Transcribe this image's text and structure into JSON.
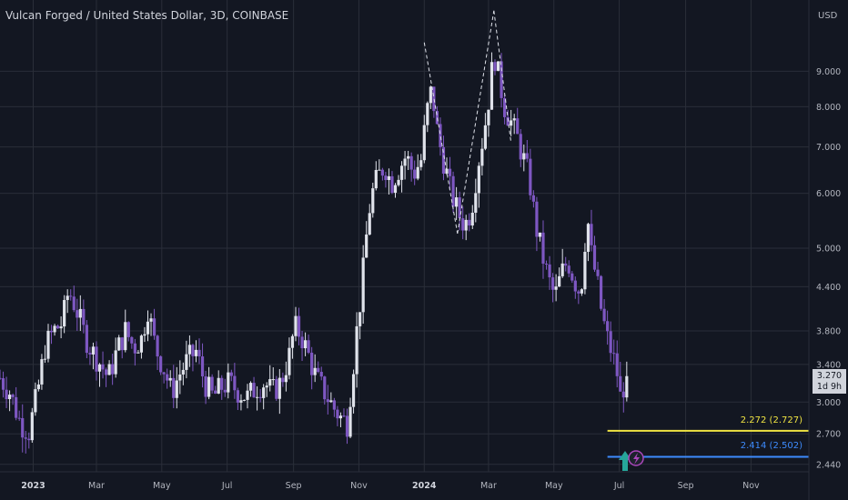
{
  "header": {
    "title": "Vulcan Forged / United States Dollar, 3D, COINBASE",
    "currency": "USD"
  },
  "price_tag": {
    "price": "3.270",
    "countdown": "1d 9h"
  },
  "levels": [
    {
      "label": "2.272 (2.727)",
      "value": 2.727,
      "color": "#f0e442"
    },
    {
      "label": "2.414 (2.502)",
      "value": 2.502,
      "color": "#3d8bfd"
    }
  ],
  "colors": {
    "background": "#131722",
    "grid": "#2a2e39",
    "bull": "#e0e3eb",
    "bear": "#7e57c2"
  },
  "chart_data": {
    "type": "candlestick",
    "title": "Vulcan Forged / United States Dollar, 3D, COINBASE",
    "scale": "log",
    "ylim": [
      2.38,
      11.4
    ],
    "y_ticks": [
      "9.000",
      "8.000",
      "7.000",
      "6.000",
      "5.000",
      "4.400",
      "3.800",
      "3.400",
      "3.000",
      "2.700",
      "2.440"
    ],
    "y_tick_values": [
      9.0,
      8.0,
      7.0,
      6.0,
      5.0,
      4.4,
      3.8,
      3.4,
      3.0,
      2.7,
      2.44
    ],
    "x_ticks": [
      {
        "label": "2023",
        "date": "2023-01-01",
        "bold": true
      },
      {
        "label": "Mar",
        "date": "2023-03-01",
        "bold": false
      },
      {
        "label": "May",
        "date": "2023-05-01",
        "bold": false
      },
      {
        "label": "Jul",
        "date": "2023-07-01",
        "bold": false
      },
      {
        "label": "Sep",
        "date": "2023-09-01",
        "bold": false
      },
      {
        "label": "Nov",
        "date": "2023-11-01",
        "bold": false
      },
      {
        "label": "2024",
        "date": "2024-01-01",
        "bold": true
      },
      {
        "label": "Mar",
        "date": "2024-03-01",
        "bold": false
      },
      {
        "label": "May",
        "date": "2024-05-01",
        "bold": false
      },
      {
        "label": "Jul",
        "date": "2024-07-01",
        "bold": false
      },
      {
        "label": "Sep",
        "date": "2024-09-01",
        "bold": false
      },
      {
        "label": "Nov",
        "date": "2024-11-01",
        "bold": false
      }
    ],
    "x_range": [
      "2022-12-01",
      "2024-12-25"
    ],
    "close_path": [
      [
        "2022-12-01",
        3.25
      ],
      [
        "2022-12-10",
        3.1
      ],
      [
        "2022-12-20",
        2.8
      ],
      [
        "2022-12-28",
        2.72
      ],
      [
        "2023-01-05",
        3.1
      ],
      [
        "2023-01-12",
        3.6
      ],
      [
        "2023-01-20",
        3.8
      ],
      [
        "2023-01-28",
        3.9
      ],
      [
        "2023-02-03",
        4.35
      ],
      [
        "2023-02-10",
        4.1
      ],
      [
        "2023-02-18",
        3.75
      ],
      [
        "2023-02-25",
        3.55
      ],
      [
        "2023-03-05",
        3.4
      ],
      [
        "2023-03-12",
        3.25
      ],
      [
        "2023-03-20",
        3.55
      ],
      [
        "2023-03-28",
        3.8
      ],
      [
        "2023-04-05",
        3.6
      ],
      [
        "2023-04-12",
        3.7
      ],
      [
        "2023-04-18",
        4.1
      ],
      [
        "2023-04-25",
        3.6
      ],
      [
        "2023-05-03",
        3.35
      ],
      [
        "2023-05-10",
        3.1
      ],
      [
        "2023-05-18",
        3.3
      ],
      [
        "2023-05-25",
        3.45
      ],
      [
        "2023-06-02",
        3.55
      ],
      [
        "2023-06-10",
        3.2
      ],
      [
        "2023-06-18",
        3.05
      ],
      [
        "2023-06-25",
        3.15
      ],
      [
        "2023-07-03",
        3.2
      ],
      [
        "2023-07-12",
        3.1
      ],
      [
        "2023-07-20",
        3.05
      ],
      [
        "2023-07-28",
        3.15
      ],
      [
        "2023-08-05",
        3.2
      ],
      [
        "2023-08-12",
        3.1
      ],
      [
        "2023-08-20",
        3.2
      ],
      [
        "2023-08-28",
        3.5
      ],
      [
        "2023-09-02",
        3.85
      ],
      [
        "2023-09-08",
        3.75
      ],
      [
        "2023-09-15",
        3.5
      ],
      [
        "2023-09-22",
        3.25
      ],
      [
        "2023-09-30",
        3.1
      ],
      [
        "2023-10-08",
        2.95
      ],
      [
        "2023-10-15",
        2.85
      ],
      [
        "2023-10-21",
        2.8
      ],
      [
        "2023-10-26",
        3.3
      ],
      [
        "2023-10-30",
        3.8
      ],
      [
        "2023-11-03",
        4.3
      ],
      [
        "2023-11-08",
        5.2
      ],
      [
        "2023-11-12",
        5.9
      ],
      [
        "2023-11-18",
        6.3
      ],
      [
        "2023-11-25",
        6.6
      ],
      [
        "2023-12-01",
        6.2
      ],
      [
        "2023-12-08",
        6.5
      ],
      [
        "2023-12-15",
        6.8
      ],
      [
        "2023-12-22",
        6.4
      ],
      [
        "2023-12-29",
        6.7
      ],
      [
        "2024-01-03",
        7.8
      ],
      [
        "2024-01-08",
        8.5
      ],
      [
        "2024-01-14",
        7.2
      ],
      [
        "2024-01-20",
        6.6
      ],
      [
        "2024-01-26",
        6.0
      ],
      [
        "2024-02-02",
        5.6
      ],
      [
        "2024-02-08",
        5.4
      ],
      [
        "2024-02-14",
        5.7
      ],
      [
        "2024-02-20",
        6.6
      ],
      [
        "2024-02-26",
        7.4
      ],
      [
        "2024-03-02",
        8.4
      ],
      [
        "2024-03-06",
        9.6
      ],
      [
        "2024-03-10",
        8.9
      ],
      [
        "2024-03-16",
        8.0
      ],
      [
        "2024-03-22",
        7.6
      ],
      [
        "2024-03-28",
        7.2
      ],
      [
        "2024-04-03",
        6.7
      ],
      [
        "2024-04-08",
        6.3
      ],
      [
        "2024-04-14",
        5.4
      ],
      [
        "2024-04-20",
        4.9
      ],
      [
        "2024-04-26",
        4.5
      ],
      [
        "2024-05-02",
        4.25
      ],
      [
        "2024-05-08",
        4.6
      ],
      [
        "2024-05-14",
        4.8
      ],
      [
        "2024-05-20",
        4.5
      ],
      [
        "2024-05-26",
        4.3
      ],
      [
        "2024-06-01",
        5.6
      ],
      [
        "2024-06-05",
        4.9
      ],
      [
        "2024-06-10",
        4.5
      ],
      [
        "2024-06-15",
        4.0
      ],
      [
        "2024-06-20",
        3.7
      ],
      [
        "2024-06-25",
        3.5
      ],
      [
        "2024-06-29",
        3.3
      ],
      [
        "2024-07-02",
        3.05
      ],
      [
        "2024-07-06",
        3.2
      ],
      [
        "2024-07-10",
        3.27
      ]
    ],
    "zigzag": [
      [
        "2024-01-01",
        9.9
      ],
      [
        "2024-02-01",
        5.25
      ],
      [
        "2024-03-06",
        11.0
      ],
      [
        "2024-03-22",
        7.1
      ]
    ],
    "horizontal_lines": [
      {
        "value": 2.727,
        "label": "2.272 (2.727)",
        "color": "#f0e442"
      },
      {
        "value": 2.502,
        "label": "2.414 (2.502)",
        "color": "#3d8bfd"
      }
    ],
    "last_price": 3.27
  }
}
